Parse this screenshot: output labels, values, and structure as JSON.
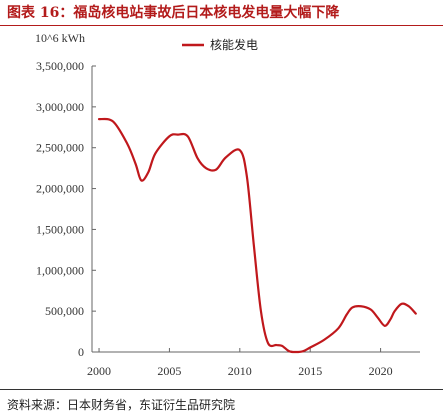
{
  "figure": {
    "title": "图表 16：福岛核电站事故后日本核电发电量大幅下降",
    "source": "资料来源：日本财务省，东证衍生品研究院"
  },
  "colors": {
    "accent": "#b31b1b",
    "series": "#c0181c"
  },
  "chart_data": {
    "type": "line",
    "unit_label": "10^6 kWh",
    "xlim": [
      1999.5,
      2022.8
    ],
    "ylim": [
      0,
      3500000
    ],
    "x_ticks": [
      2000,
      2005,
      2010,
      2015,
      2020
    ],
    "y_ticks": [
      0,
      500000,
      1000000,
      1500000,
      2000000,
      2500000,
      3000000,
      3500000
    ],
    "y_tick_labels": [
      "0",
      "500,000",
      "1,000,000",
      "1,500,000",
      "2,000,000",
      "2,500,000",
      "3,000,000",
      "3,500,000"
    ],
    "legend_position": "top-center",
    "series": [
      {
        "name": "核能发电",
        "x": [
          2000.0,
          2001.0,
          2002.0,
          2002.6,
          2003.0,
          2003.5,
          2004.0,
          2005.0,
          2005.6,
          2006.3,
          2007.0,
          2007.6,
          2008.3,
          2009.0,
          2010.0,
          2010.5,
          2011.0,
          2011.5,
          2012.0,
          2012.6,
          2013.0,
          2013.5,
          2014.0,
          2014.5,
          2015.0,
          2016.0,
          2017.0,
          2017.6,
          2018.0,
          2018.6,
          2019.3,
          2019.8,
          2020.3,
          2020.7,
          2021.0,
          2021.5,
          2022.0,
          2022.5
        ],
        "y": [
          2850000,
          2820000,
          2550000,
          2300000,
          2100000,
          2200000,
          2430000,
          2640000,
          2660000,
          2640000,
          2370000,
          2250000,
          2230000,
          2380000,
          2470000,
          2150000,
          1300000,
          500000,
          110000,
          85000,
          75000,
          10000,
          0,
          10000,
          55000,
          150000,
          290000,
          460000,
          545000,
          560000,
          520000,
          420000,
          320000,
          400000,
          500000,
          590000,
          560000,
          470000
        ]
      }
    ]
  }
}
